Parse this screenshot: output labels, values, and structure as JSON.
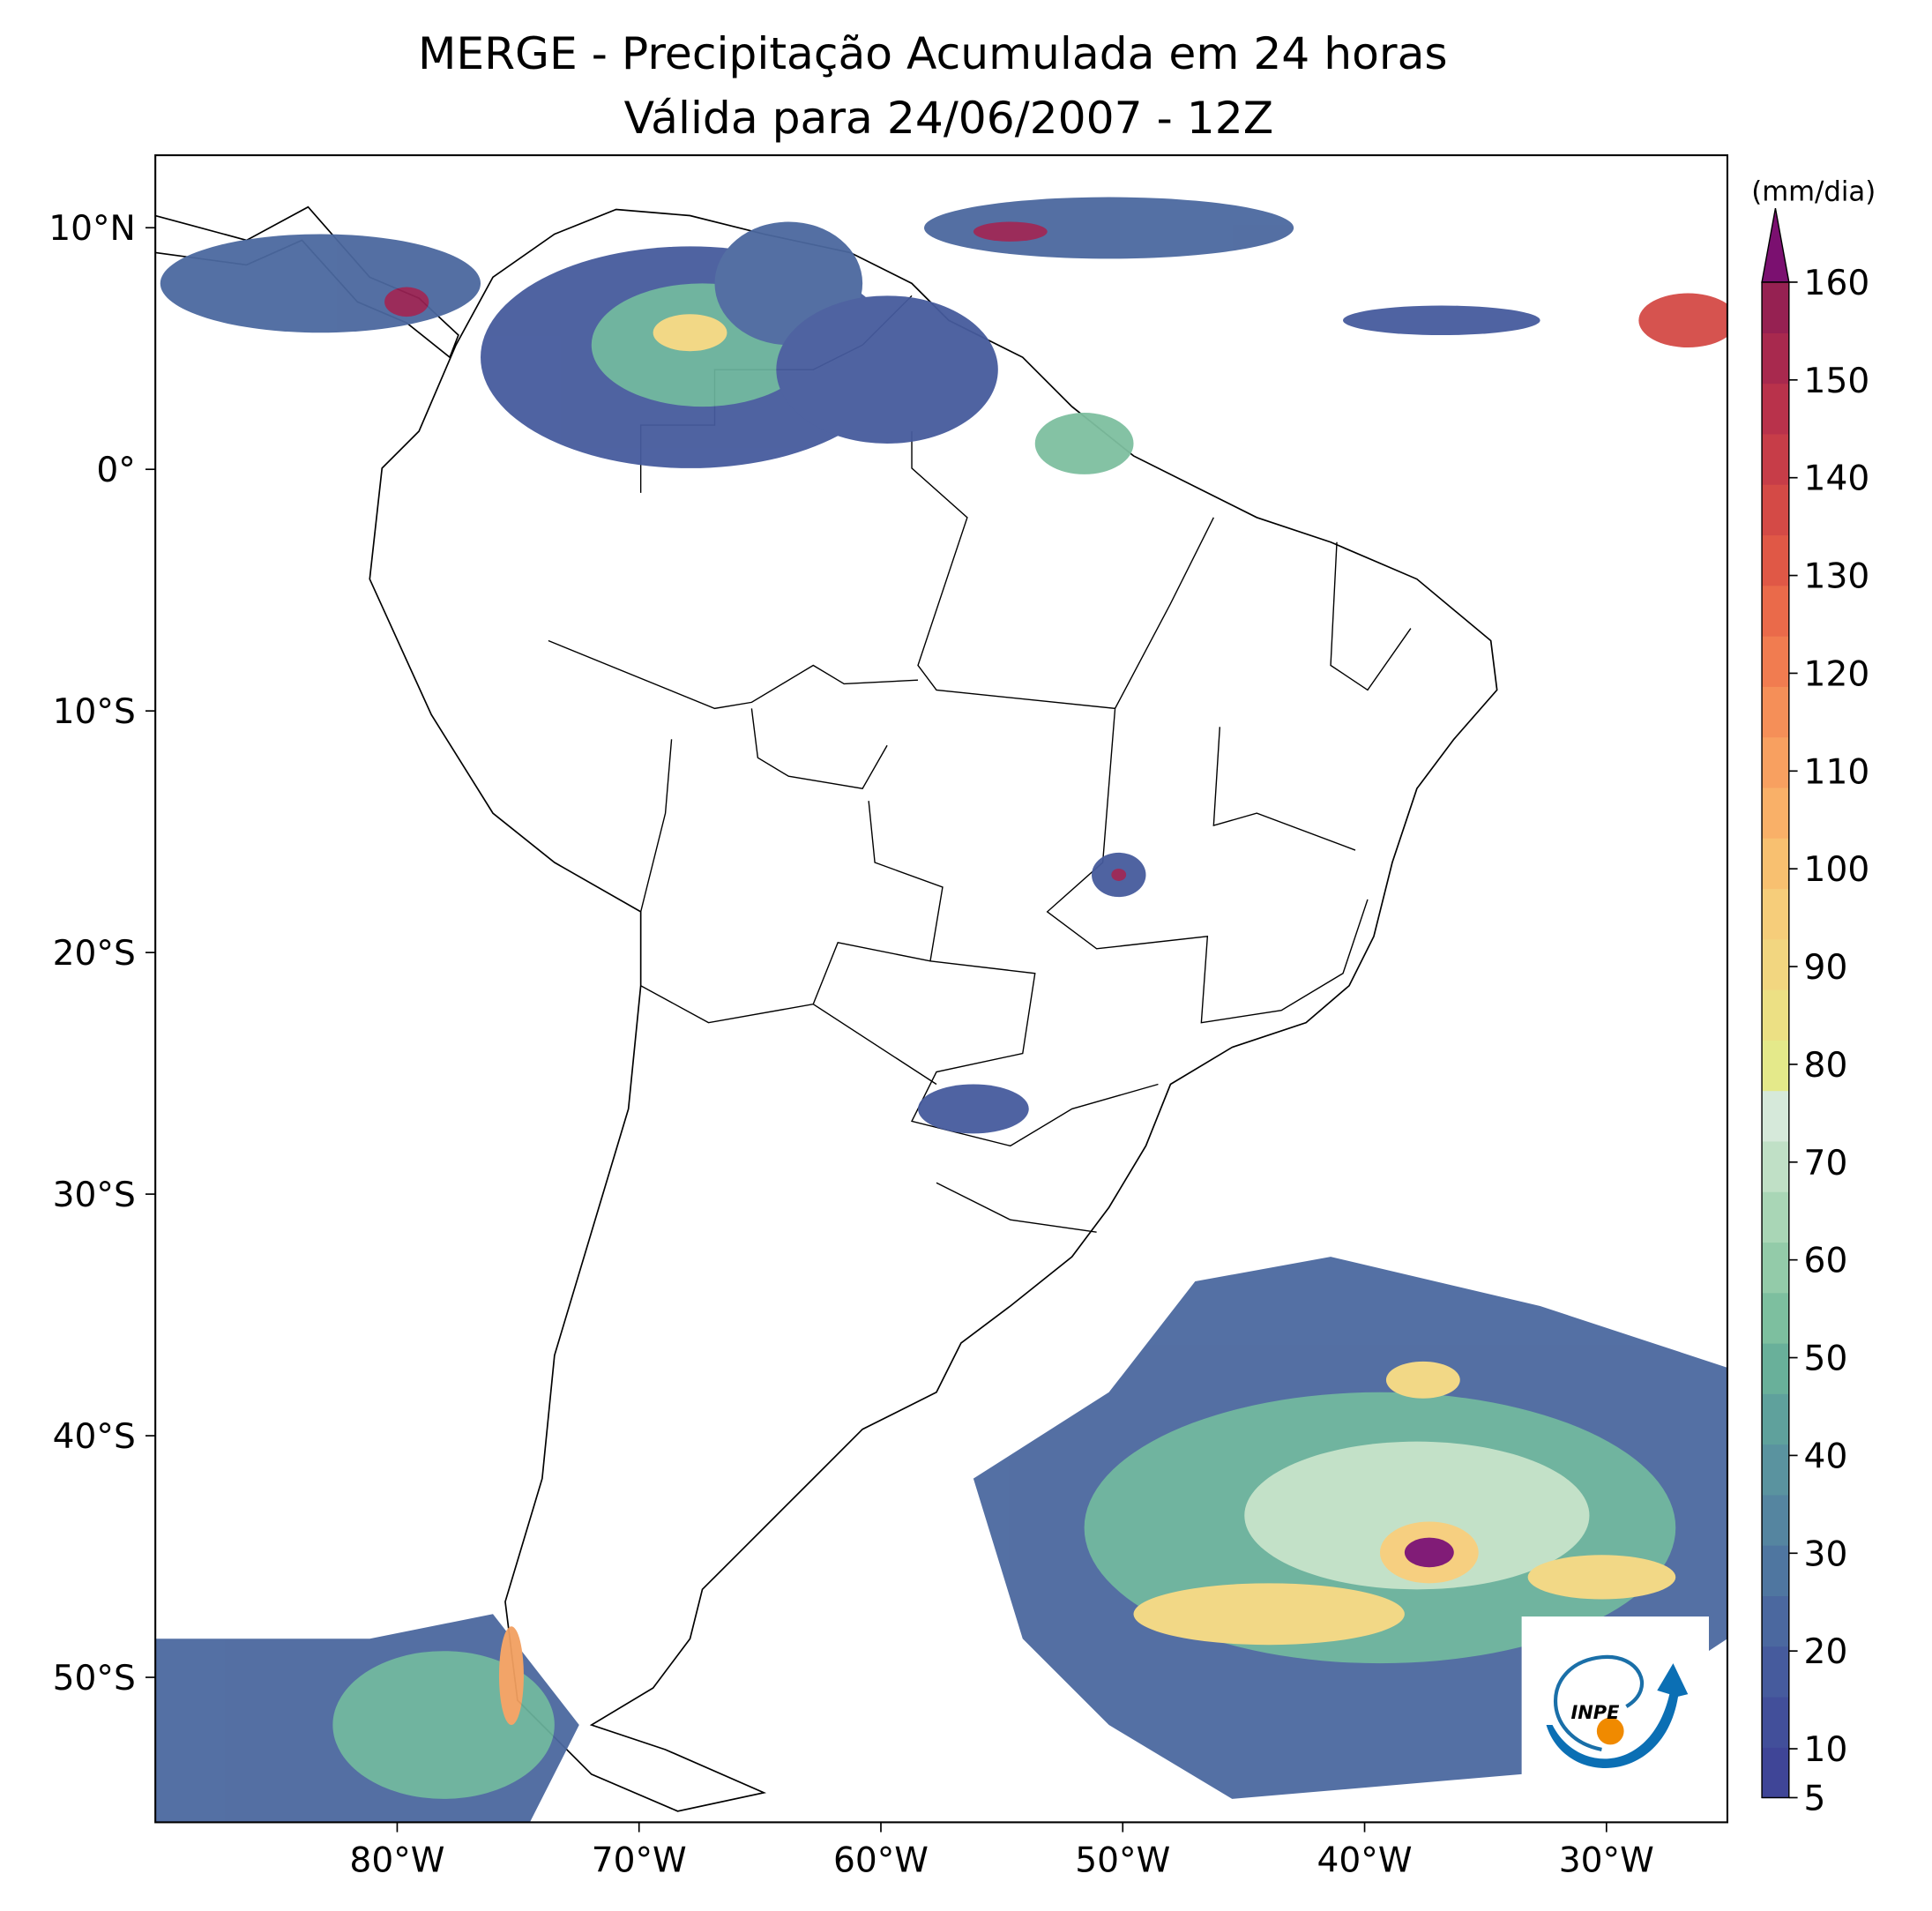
{
  "title": [
    "MERGE - Precipitação Acumulada em 24 horas",
    "Válida para 24/06/2007 - 12Z"
  ],
  "map": {
    "xlim": [
      -90,
      -25
    ],
    "ylim": [
      -56,
      13
    ],
    "xticks": [
      {
        "value": -80,
        "label": "80°W"
      },
      {
        "value": -70,
        "label": "70°W"
      },
      {
        "value": -60,
        "label": "60°W"
      },
      {
        "value": -50,
        "label": "50°W"
      },
      {
        "value": -40,
        "label": "40°W"
      },
      {
        "value": -30,
        "label": "30°W"
      }
    ],
    "yticks": [
      {
        "value": 10,
        "label": "10°N"
      },
      {
        "value": 0,
        "label": "0°"
      },
      {
        "value": -10,
        "label": "10°S"
      },
      {
        "value": -20,
        "label": "20°S"
      },
      {
        "value": -30,
        "label": "30°S"
      },
      {
        "value": -40,
        "label": "40°S"
      },
      {
        "value": -50,
        "label": "50°S"
      }
    ]
  },
  "colorbar": {
    "unit": "(mm/dia)",
    "lim": [
      5,
      160
    ],
    "extend": "max",
    "extend_color": "#7b1070",
    "ticks": [
      5,
      10,
      20,
      30,
      40,
      50,
      60,
      70,
      80,
      90,
      100,
      110,
      120,
      130,
      140,
      150,
      160
    ],
    "colors": [
      "#3f4597",
      "#424f9a",
      "#465b9d",
      "#4b689f",
      "#4f76a0",
      "#5585a0",
      "#5a939f",
      "#5fa19c",
      "#69b09a",
      "#7dbf9f",
      "#93cba9",
      "#a9d6b6",
      "#c0e0c6",
      "#d6e9da",
      "#e4e98a",
      "#ece084",
      "#f2d680",
      "#f6cd7a",
      "#f8c070",
      "#f9b068",
      "#f8a060",
      "#f58f58",
      "#f17c50",
      "#ea6a4a",
      "#e05846",
      "#d44a46",
      "#c73d48",
      "#b9324b",
      "#a8294e",
      "#962152"
    ]
  },
  "logo": {
    "text": "INPE"
  }
}
